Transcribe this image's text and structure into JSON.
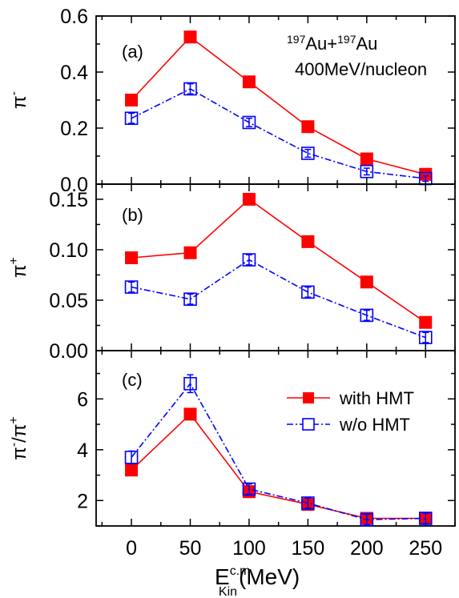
{
  "colors": {
    "with": "#ff0000",
    "without": "#0000ff",
    "axis": "#000000"
  },
  "annotation": {
    "line1_sup1": "197",
    "line1_a": "Au+",
    "line1_sup2": "197",
    "line1_b": "Au",
    "line2": "400MeV/nucleon"
  },
  "xaxis": {
    "label_main": "E",
    "label_sup": "c.m.",
    "label_sub": "Kin",
    "label_unit": "(MeV)",
    "range": [
      -30,
      275
    ],
    "ticks": [
      0,
      50,
      100,
      150,
      200,
      250
    ],
    "tick_labels": [
      "0",
      "50",
      "100",
      "150",
      "200",
      "250"
    ]
  },
  "legend": {
    "with_label": "with HMT",
    "without_label": "w/o  HMT"
  },
  "chart_data": [
    {
      "type": "line",
      "panel": "(a)",
      "ylabel": "π",
      "ylabel_sup": "-",
      "ylim": [
        0.0,
        0.6
      ],
      "yticks": [
        0.0,
        0.2,
        0.4,
        0.6
      ],
      "ytick_labels": [
        "0.0",
        "0.2",
        "0.4",
        "0.6"
      ],
      "x": [
        0,
        50,
        100,
        150,
        200,
        250
      ],
      "series": [
        {
          "name": "with HMT",
          "values": [
            0.3,
            0.525,
            0.365,
            0.205,
            0.09,
            0.035
          ]
        },
        {
          "name": "w/o  HMT",
          "values": [
            0.235,
            0.34,
            0.22,
            0.11,
            0.045,
            0.02
          ],
          "errors": [
            0.018,
            0.018,
            0.015,
            0.014,
            0.012,
            0.01
          ]
        }
      ]
    },
    {
      "type": "line",
      "panel": "(b)",
      "ylabel": "π",
      "ylabel_sup": "+",
      "ylim": [
        0.0,
        0.165
      ],
      "yticks": [
        0.0,
        0.05,
        0.1,
        0.15
      ],
      "ytick_labels": [
        "0.00",
        "0.05",
        "0.10",
        "0.15"
      ],
      "x": [
        0,
        50,
        100,
        150,
        200,
        250
      ],
      "series": [
        {
          "name": "with HMT",
          "values": [
            0.092,
            0.097,
            0.15,
            0.108,
            0.068,
            0.028
          ]
        },
        {
          "name": "w/o  HMT",
          "values": [
            0.063,
            0.051,
            0.09,
            0.058,
            0.035,
            0.013
          ],
          "errors": [
            0.005,
            0.005,
            0.005,
            0.005,
            0.005,
            0.005
          ]
        }
      ]
    },
    {
      "type": "line",
      "panel": "(c)",
      "ylabel": "π",
      "ylabel_sup": "-",
      "ylabel_mid": "/π",
      "ylabel_sup2": "+",
      "ylim": [
        1.0,
        7.9
      ],
      "yticks": [
        2,
        4,
        6
      ],
      "ytick_labels": [
        "2",
        "4",
        "6"
      ],
      "x": [
        0,
        50,
        100,
        150,
        200,
        250
      ],
      "series": [
        {
          "name": "with HMT",
          "values": [
            3.2,
            5.4,
            2.35,
            1.85,
            1.3,
            1.3
          ]
        },
        {
          "name": "w/o  HMT",
          "values": [
            3.7,
            6.6,
            2.45,
            1.9,
            1.25,
            1.3
          ],
          "errors": [
            0.25,
            0.35,
            0.2,
            0.2,
            0.2,
            0.2
          ]
        }
      ]
    }
  ]
}
